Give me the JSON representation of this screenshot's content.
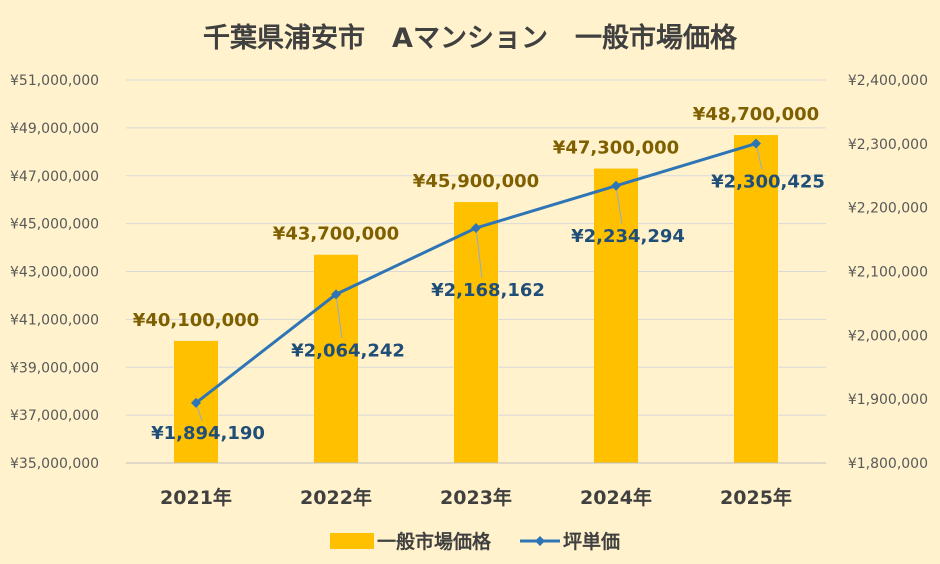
{
  "chart_data": {
    "type": "bar",
    "title": "千葉県浦安市　Aマンション　一般市場価格",
    "categories": [
      "2021年",
      "2022年",
      "2023年",
      "2024年",
      "2025年"
    ],
    "series": [
      {
        "name": "一般市場価格",
        "type": "bar",
        "axis": "left",
        "color": "#ffc000",
        "values": [
          40100000,
          43700000,
          45900000,
          47300000,
          48700000
        ],
        "labels": [
          "¥40,100,000",
          "¥43,700,000",
          "¥45,900,000",
          "¥47,300,000",
          "¥48,700,000"
        ]
      },
      {
        "name": "坪単価",
        "type": "line",
        "axis": "right",
        "color": "#2e75b6",
        "marker": "diamond",
        "values": [
          1894190,
          2064242,
          2168162,
          2234294,
          2300425
        ],
        "labels": [
          "¥1,894,190",
          "¥2,064,242",
          "¥2,168,162",
          "¥2,234,294",
          "¥2,300,425"
        ]
      }
    ],
    "y_left": {
      "range": [
        35000000,
        51000000
      ],
      "ticks": [
        35000000,
        37000000,
        39000000,
        41000000,
        43000000,
        45000000,
        47000000,
        49000000,
        51000000
      ],
      "tick_labels": [
        "¥35,000,000",
        "¥37,000,000",
        "¥39,000,000",
        "¥41,000,000",
        "¥43,000,000",
        "¥45,000,000",
        "¥47,000,000",
        "¥49,000,000",
        "¥51,000,000"
      ]
    },
    "y_right": {
      "range": [
        1800000,
        2400000
      ],
      "ticks": [
        1800000,
        1900000,
        2000000,
        2100000,
        2200000,
        2300000,
        2400000
      ],
      "tick_labels": [
        "¥1,800,000",
        "¥1,900,000",
        "¥2,000,000",
        "¥2,100,000",
        "¥2,200,000",
        "¥2,300,000",
        "¥2,400,000"
      ]
    },
    "grid": true,
    "legend": "bottom",
    "colors": {
      "background": "#fff2cc",
      "grid": "#d9d9d9",
      "bar_label": "#7f6000",
      "line_label": "#1f4e79"
    }
  }
}
